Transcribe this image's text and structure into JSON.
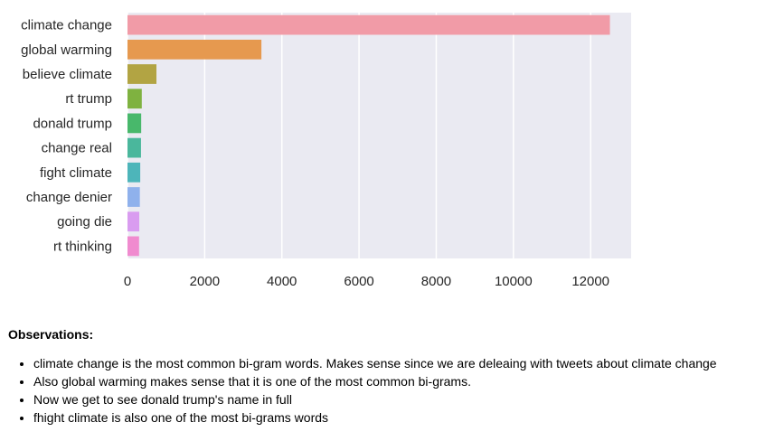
{
  "chart_data": {
    "type": "bar",
    "orientation": "horizontal",
    "categories": [
      "climate change",
      "global warming",
      "believe climate",
      "rt trump",
      "donald trump",
      "change real",
      "fight climate",
      "change denier",
      "going die",
      "rt thinking"
    ],
    "values": [
      12500,
      3470,
      750,
      370,
      355,
      350,
      330,
      320,
      305,
      300
    ],
    "colors": [
      "#f19ba7",
      "#e6994f",
      "#b2a443",
      "#7fb240",
      "#48b86b",
      "#4ab79c",
      "#4db5ba",
      "#8fb1ec",
      "#d99cf0",
      "#f08bcf"
    ],
    "xticks": [
      "0",
      "2000",
      "4000",
      "6000",
      "8000",
      "10000",
      "12000"
    ],
    "xlim": [
      0,
      13050
    ],
    "grid": true,
    "background": "#eaeaf2"
  },
  "observations": {
    "heading": "Observations:",
    "items": [
      "climate change is the most common bi-gram words. Makes sense since we are deleaing with tweets about climate change",
      "Also global warming makes sense that it is one of the most common bi-grams.",
      "Now we get to see donald trump's name in full",
      "fhight climate is also one of the most bi-grams words"
    ]
  }
}
